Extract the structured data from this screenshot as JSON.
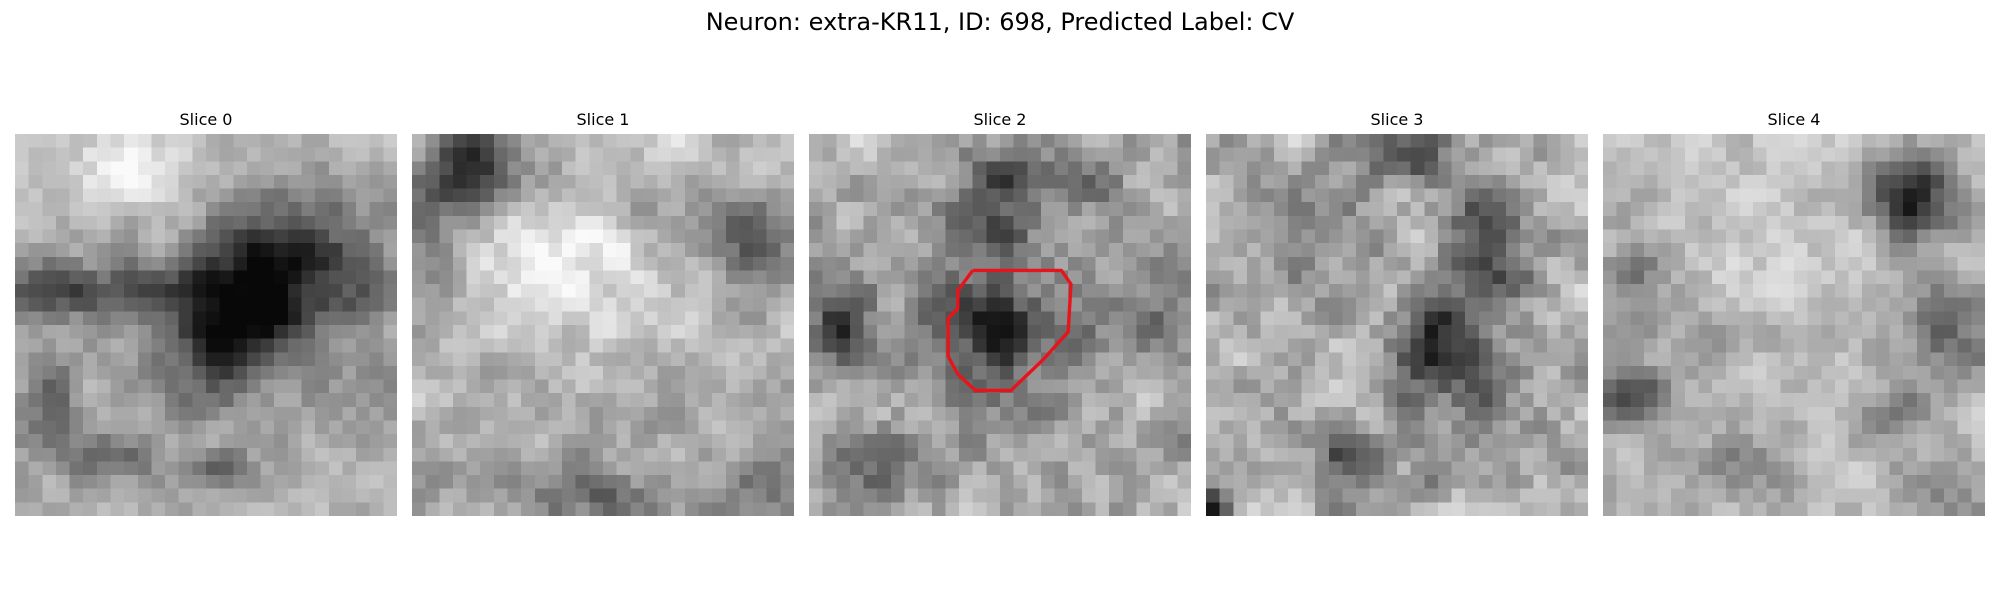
{
  "figure": {
    "title": "Neuron: extra-KR11, ID: 698, Predicted Label: CV"
  },
  "panels": [
    {
      "title": "Slice 0",
      "image": "grayscale-slice",
      "contour": false
    },
    {
      "title": "Slice 1",
      "image": "grayscale-slice",
      "contour": false
    },
    {
      "title": "Slice 2",
      "image": "grayscale-slice",
      "contour": true
    },
    {
      "title": "Slice 3",
      "image": "grayscale-slice",
      "contour": false
    },
    {
      "title": "Slice 4",
      "image": "grayscale-slice",
      "contour": false
    }
  ],
  "colors": {
    "contour": "#e8141b",
    "background": "#ffffff"
  }
}
